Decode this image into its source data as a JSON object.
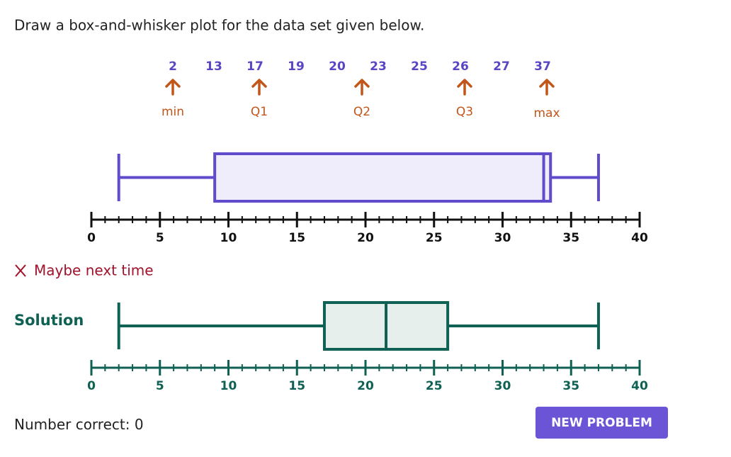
{
  "prompt": "Draw a box-and-whisker plot for the data set given below.",
  "data_set": [
    2,
    13,
    17,
    19,
    20,
    23,
    25,
    26,
    27,
    37
  ],
  "markers": [
    "min",
    "Q1",
    "Q2",
    "Q3",
    "max"
  ],
  "feedback": "Maybe next time",
  "solution_label": "Solution",
  "score": {
    "label": "Number correct:",
    "value": 0
  },
  "button": "NEW PROBLEM",
  "chart_data": [
    {
      "type": "box",
      "color": "#5f4bcc",
      "fill": "#efedfb",
      "min": 2,
      "q1": 9,
      "median": 33,
      "q3": 33.5,
      "max": 37,
      "xlim": [
        0,
        40
      ],
      "xticks": [
        0,
        5,
        10,
        15,
        20,
        25,
        30,
        35,
        40
      ],
      "axis_color": "#111111"
    },
    {
      "type": "box",
      "color": "#0e6153",
      "fill": "#e7efed",
      "min": 2,
      "q1": 17,
      "median": 21.5,
      "q3": 26,
      "max": 37,
      "xlim": [
        0,
        40
      ],
      "xticks": [
        0,
        5,
        10,
        15,
        20,
        25,
        30,
        35,
        40
      ],
      "axis_color": "#0e6153"
    }
  ]
}
